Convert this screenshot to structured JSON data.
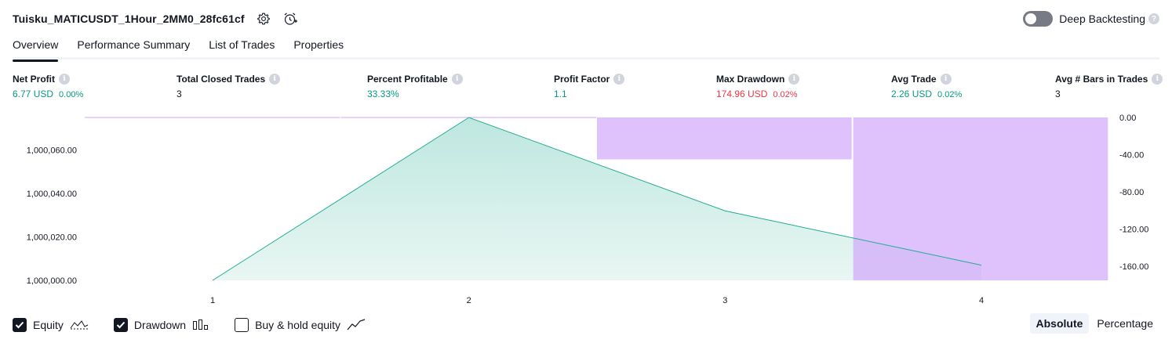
{
  "header": {
    "strategy_title": "Tuisku_MATICUSDT_1Hour_2MM0_28fc61cf",
    "settings_icon": "gear-icon",
    "alert_icon": "alarm-clock-add-icon",
    "deep_backtesting_label": "Deep Backtesting",
    "deep_backtesting_on": false,
    "help_glyph": "?"
  },
  "tabs": [
    {
      "label": "Overview",
      "active": true
    },
    {
      "label": "Performance Summary",
      "active": false
    },
    {
      "label": "List of Trades",
      "active": false
    },
    {
      "label": "Properties",
      "active": false
    }
  ],
  "metrics": {
    "net_profit": {
      "label": "Net Profit",
      "value": "6.77 USD",
      "pct": "0.00%"
    },
    "total_closed_trades": {
      "label": "Total Closed Trades",
      "value": "3"
    },
    "percent_profitable": {
      "label": "Percent Profitable",
      "value": "33.33%"
    },
    "profit_factor": {
      "label": "Profit Factor",
      "value": "1.1"
    },
    "max_drawdown": {
      "label": "Max Drawdown",
      "value": "174.96 USD",
      "pct": "0.02%"
    },
    "avg_trade": {
      "label": "Avg Trade",
      "value": "2.26 USD",
      "pct": "0.02%"
    },
    "avg_bars": {
      "label": "Avg # Bars in Trades",
      "value": "3"
    },
    "info_glyph": "i"
  },
  "chart_data": {
    "type": "area",
    "x": [
      1,
      2,
      3,
      4
    ],
    "x_tick_labels": [
      "1",
      "2",
      "3",
      "4"
    ],
    "left_axis": {
      "tick_labels": [
        "1,000,000.00",
        "1,000,020.00",
        "1,000,040.00",
        "1,000,060.00"
      ],
      "ticks": [
        1000000,
        1000020,
        1000040,
        1000060
      ],
      "range": [
        1000000,
        1000075
      ]
    },
    "right_axis": {
      "tick_labels": [
        "0.00",
        "-40.00",
        "-80.00",
        "-120.00",
        "-160.00"
      ],
      "ticks": [
        0,
        -40,
        -80,
        -120,
        -160
      ],
      "range": [
        -174.96,
        0
      ]
    },
    "series": [
      {
        "kind": "equity",
        "values": [
          1000000,
          1000075,
          1000032,
          1000007
        ]
      },
      {
        "kind": "drawdown",
        "bars": [
          {
            "from": 0.5,
            "to": 1.5,
            "value": 0
          },
          {
            "from": 1.5,
            "to": 2.5,
            "value": 0
          },
          {
            "from": 2.5,
            "to": 3.5,
            "value": -45
          },
          {
            "from": 3.5,
            "to": 4.5,
            "value": -174.96
          }
        ]
      }
    ],
    "colors": {
      "equity_line": "#22ab94",
      "equity_fill_top": "#bde7df",
      "equity_fill_bottom": "#e9f6f3",
      "drawdown": "#d1a6fb",
      "axis_text": "#131722"
    },
    "grid": false
  },
  "legend": {
    "equity": {
      "label": "Equity",
      "checked": true,
      "icon": "equity-line-icon"
    },
    "drawdown": {
      "label": "Drawdown",
      "checked": true,
      "icon": "drawdown-bars-icon"
    },
    "buy_hold": {
      "label": "Buy & hold equity",
      "checked": false,
      "icon": "buy-hold-line-icon"
    }
  },
  "view_mode": {
    "absolute_label": "Absolute",
    "percentage_label": "Percentage",
    "active": "absolute"
  }
}
